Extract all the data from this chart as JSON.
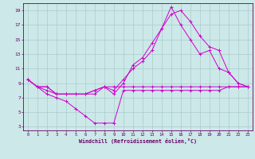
{
  "xlabel": "Windchill (Refroidissement éolien,°C)",
  "bg_color": "#cce8e8",
  "line_color": "#cc00cc",
  "grid_color": "#aacccc",
  "xlim": [
    -0.5,
    23.5
  ],
  "ylim": [
    2.5,
    20.0
  ],
  "xticks": [
    0,
    1,
    2,
    3,
    4,
    5,
    6,
    7,
    8,
    9,
    10,
    11,
    12,
    13,
    14,
    15,
    16,
    17,
    18,
    19,
    20,
    21,
    22,
    23
  ],
  "yticks": [
    3,
    5,
    7,
    9,
    11,
    13,
    15,
    17,
    19
  ],
  "lines": [
    {
      "x": [
        0,
        1,
        2,
        3,
        4,
        5,
        6,
        7,
        8,
        9,
        10,
        11,
        12,
        13,
        14,
        15,
        16,
        17,
        18,
        19,
        20,
        21,
        22,
        23
      ],
      "y": [
        9.5,
        8.5,
        8.5,
        7.5,
        7.5,
        7.5,
        7.5,
        7.5,
        8.5,
        7.5,
        9.0,
        11.5,
        12.5,
        14.5,
        16.5,
        19.5,
        17.0,
        15.0,
        13.0,
        13.5,
        11.0,
        10.5,
        9.0,
        8.5
      ]
    },
    {
      "x": [
        0,
        1,
        2,
        3,
        4,
        5,
        6,
        7,
        8,
        9,
        10,
        11,
        12,
        13,
        14,
        15,
        16,
        17,
        18,
        19,
        20,
        21,
        22,
        23
      ],
      "y": [
        9.5,
        8.5,
        8.5,
        7.5,
        7.5,
        7.5,
        7.5,
        8.0,
        8.5,
        8.0,
        9.5,
        11.0,
        12.0,
        13.5,
        16.5,
        18.5,
        19.0,
        17.5,
        15.5,
        14.0,
        13.5,
        10.5,
        9.0,
        8.5
      ]
    },
    {
      "x": [
        0,
        1,
        2,
        3,
        4,
        5,
        6,
        7,
        8,
        9,
        10,
        11,
        12,
        13,
        14,
        15,
        16,
        17,
        18,
        19,
        20,
        21,
        22,
        23
      ],
      "y": [
        9.5,
        8.5,
        7.5,
        7.0,
        6.5,
        5.5,
        4.5,
        3.5,
        3.5,
        3.5,
        8.0,
        8.0,
        8.0,
        8.0,
        8.0,
        8.0,
        8.0,
        8.0,
        8.0,
        8.0,
        8.0,
        8.5,
        8.5,
        8.5
      ]
    },
    {
      "x": [
        0,
        1,
        2,
        3,
        4,
        5,
        6,
        7,
        8,
        9,
        10,
        11,
        12,
        13,
        14,
        15,
        16,
        17,
        18,
        19,
        20,
        21,
        22,
        23
      ],
      "y": [
        9.5,
        8.5,
        8.0,
        7.5,
        7.5,
        7.5,
        7.5,
        8.0,
        8.5,
        8.5,
        8.5,
        8.5,
        8.5,
        8.5,
        8.5,
        8.5,
        8.5,
        8.5,
        8.5,
        8.5,
        8.5,
        8.5,
        8.5,
        8.5
      ]
    }
  ]
}
